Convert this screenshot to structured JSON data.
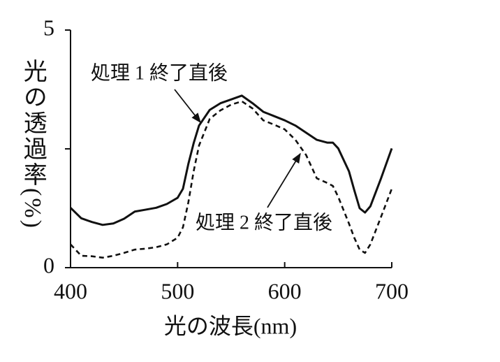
{
  "chart_data": {
    "type": "line",
    "xlabel": "光の波長(nm)",
    "ylabel": "光の透過率(%)",
    "x": [
      400,
      410,
      420,
      430,
      440,
      450,
      460,
      470,
      480,
      490,
      500,
      505,
      510,
      515,
      520,
      530,
      540,
      550,
      560,
      570,
      580,
      590,
      600,
      610,
      620,
      630,
      640,
      645,
      650,
      660,
      665,
      670,
      675,
      680,
      690,
      700
    ],
    "series": [
      {
        "name": "処理 1 終了直後",
        "color": "#111111",
        "dash": "solid",
        "values": [
          1.26,
          1.04,
          0.96,
          0.9,
          0.93,
          1.03,
          1.18,
          1.22,
          1.26,
          1.34,
          1.47,
          1.66,
          2.18,
          2.62,
          2.99,
          3.32,
          3.46,
          3.54,
          3.62,
          3.46,
          3.28,
          3.19,
          3.1,
          2.99,
          2.84,
          2.69,
          2.63,
          2.63,
          2.51,
          2.03,
          1.63,
          1.25,
          1.16,
          1.29,
          1.88,
          2.51
        ]
      },
      {
        "name": "処理 2 終了直後",
        "color": "#111111",
        "dash": "dashed",
        "values": [
          0.49,
          0.25,
          0.24,
          0.21,
          0.25,
          0.31,
          0.38,
          0.4,
          0.43,
          0.49,
          0.63,
          0.85,
          1.37,
          2.03,
          2.57,
          3.13,
          3.31,
          3.43,
          3.5,
          3.35,
          3.1,
          3.01,
          2.91,
          2.69,
          2.37,
          1.88,
          1.78,
          1.72,
          1.49,
          0.93,
          0.63,
          0.38,
          0.31,
          0.49,
          1.07,
          1.66
        ]
      }
    ],
    "xlim": [
      400,
      700
    ],
    "xticks": [
      400,
      500,
      600,
      700
    ],
    "ylim": [
      0,
      5
    ],
    "yticks": [
      0,
      5
    ],
    "minor_yticks": [
      2.5
    ],
    "grid": false
  }
}
